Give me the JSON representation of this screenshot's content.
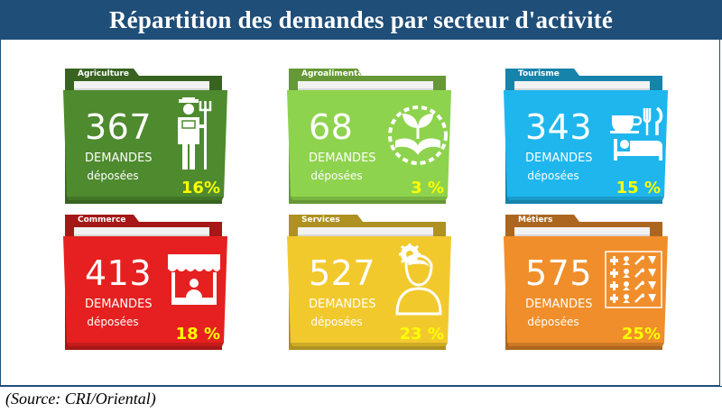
{
  "title": "Répartition des demandes par secteur d'activité",
  "source": "(Source: CRI/Oriental)",
  "chart_data": {
    "type": "table",
    "title": "Répartition des demandes par secteur d'activité",
    "unit_label": "DEMANDES",
    "unit_sublabel": "déposées",
    "categories": [
      "Agriculture",
      "Agroalimentaire",
      "Tourisme",
      "Commerce",
      "Services",
      "Métiers"
    ],
    "values": [
      367,
      68,
      343,
      413,
      527,
      575
    ],
    "percent_labels": [
      "16%",
      "3 %",
      "15 %",
      "18 %",
      "23 %",
      "25%"
    ],
    "colors": [
      "#4e8a2e",
      "#8ed34d",
      "#1fb6ee",
      "#e62020",
      "#f2c92d",
      "#f08e2b"
    ]
  },
  "icons": [
    "farmer-icon",
    "plant-hands-icon",
    "hotel-restaurant-icon",
    "market-stall-icon",
    "service-person-icon",
    "crafts-grid-icon"
  ]
}
